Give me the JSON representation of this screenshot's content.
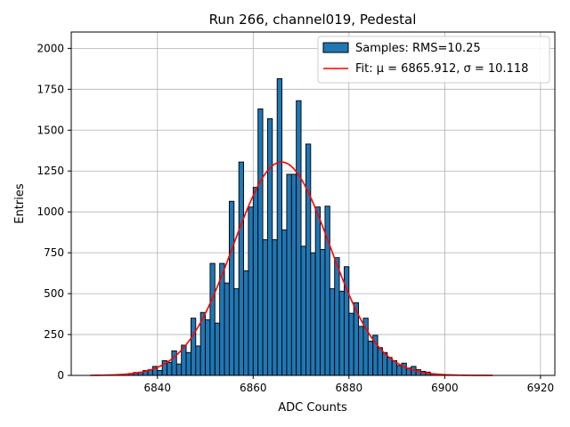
{
  "chart_data": {
    "type": "bar",
    "title": "Run 266, channel019, Pedestal",
    "xlabel": "ADC Counts",
    "ylabel": "Entries",
    "xlim": [
      6822,
      6923
    ],
    "ylim": [
      0,
      2100
    ],
    "xticks": [
      "6840",
      "6860",
      "6880",
      "6900",
      "6920"
    ],
    "yticks": [
      "0",
      "250",
      "500",
      "750",
      "1000",
      "1250",
      "1500",
      "1750",
      "2000"
    ],
    "grid": true,
    "legend_position": "top-right",
    "bin_width": 1,
    "series": [
      {
        "name": "Samples: RMS=10.25",
        "kind": "histogram",
        "color": "#1f77b4",
        "edge_color": "#000000",
        "bins": [
          {
            "x": 6832,
            "y": 5
          },
          {
            "x": 6833,
            "y": 8
          },
          {
            "x": 6834,
            "y": 12
          },
          {
            "x": 6835,
            "y": 18
          },
          {
            "x": 6836,
            "y": 20
          },
          {
            "x": 6837,
            "y": 30
          },
          {
            "x": 6838,
            "y": 35
          },
          {
            "x": 6839,
            "y": 55
          },
          {
            "x": 6840,
            "y": 30
          },
          {
            "x": 6841,
            "y": 90
          },
          {
            "x": 6842,
            "y": 80
          },
          {
            "x": 6843,
            "y": 150
          },
          {
            "x": 6844,
            "y": 70
          },
          {
            "x": 6845,
            "y": 185
          },
          {
            "x": 6846,
            "y": 140
          },
          {
            "x": 6847,
            "y": 350
          },
          {
            "x": 6848,
            "y": 180
          },
          {
            "x": 6849,
            "y": 385
          },
          {
            "x": 6850,
            "y": 340
          },
          {
            "x": 6851,
            "y": 685
          },
          {
            "x": 6852,
            "y": 320
          },
          {
            "x": 6853,
            "y": 685
          },
          {
            "x": 6854,
            "y": 565
          },
          {
            "x": 6855,
            "y": 1065
          },
          {
            "x": 6856,
            "y": 530
          },
          {
            "x": 6857,
            "y": 1305
          },
          {
            "x": 6858,
            "y": 640
          },
          {
            "x": 6859,
            "y": 1030
          },
          {
            "x": 6860,
            "y": 1150
          },
          {
            "x": 6861,
            "y": 1630
          },
          {
            "x": 6862,
            "y": 830
          },
          {
            "x": 6863,
            "y": 1570
          },
          {
            "x": 6864,
            "y": 830
          },
          {
            "x": 6865,
            "y": 1815
          },
          {
            "x": 6866,
            "y": 890
          },
          {
            "x": 6867,
            "y": 1230
          },
          {
            "x": 6868,
            "y": 1230
          },
          {
            "x": 6869,
            "y": 1680
          },
          {
            "x": 6870,
            "y": 790
          },
          {
            "x": 6871,
            "y": 1415
          },
          {
            "x": 6872,
            "y": 750
          },
          {
            "x": 6873,
            "y": 1030
          },
          {
            "x": 6874,
            "y": 770
          },
          {
            "x": 6875,
            "y": 1035
          },
          {
            "x": 6876,
            "y": 530
          },
          {
            "x": 6877,
            "y": 720
          },
          {
            "x": 6878,
            "y": 515
          },
          {
            "x": 6879,
            "y": 665
          },
          {
            "x": 6880,
            "y": 380
          },
          {
            "x": 6881,
            "y": 445
          },
          {
            "x": 6882,
            "y": 300
          },
          {
            "x": 6883,
            "y": 350
          },
          {
            "x": 6884,
            "y": 210
          },
          {
            "x": 6885,
            "y": 245
          },
          {
            "x": 6886,
            "y": 170
          },
          {
            "x": 6887,
            "y": 140
          },
          {
            "x": 6888,
            "y": 110
          },
          {
            "x": 6889,
            "y": 90
          },
          {
            "x": 6890,
            "y": 60
          },
          {
            "x": 6891,
            "y": 75
          },
          {
            "x": 6892,
            "y": 45
          },
          {
            "x": 6893,
            "y": 55
          },
          {
            "x": 6894,
            "y": 35
          },
          {
            "x": 6895,
            "y": 25
          },
          {
            "x": 6896,
            "y": 20
          },
          {
            "x": 6897,
            "y": 10
          }
        ]
      },
      {
        "name": "Fit: μ = 6865.912, σ = 10.118",
        "kind": "gaussian-fit",
        "color": "#ff0000",
        "mu": 6865.912,
        "sigma": 10.118,
        "amplitude": 1305,
        "x_range": [
          6826,
          6910
        ]
      }
    ]
  }
}
